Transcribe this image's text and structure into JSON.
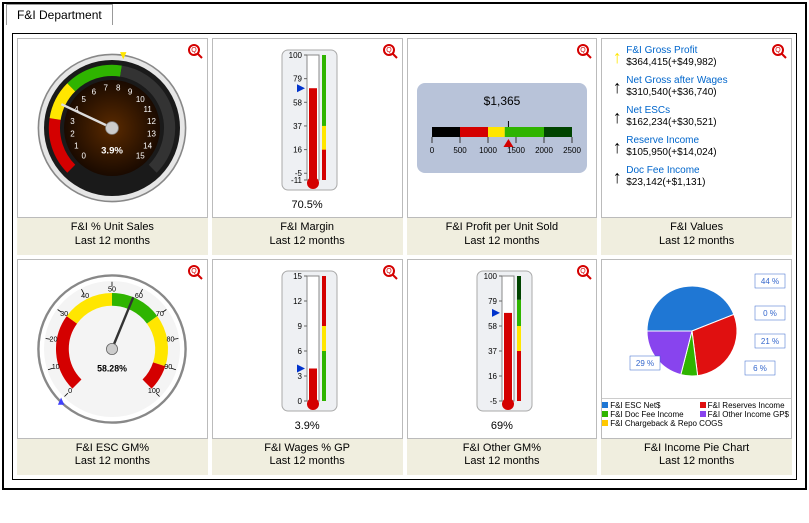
{
  "tab_title": "F&I Department",
  "cards": [
    {
      "title": "F&I % Unit Sales",
      "subtitle": "Last 12 months"
    },
    {
      "title": "F&I Margin",
      "subtitle": "Last 12 months"
    },
    {
      "title": "F&I Profit per Unit Sold",
      "subtitle": "Last 12 months"
    },
    {
      "title": "F&I Values",
      "subtitle": "Last 12 months"
    },
    {
      "title": "F&I ESC GM%",
      "subtitle": "Last 12 months"
    },
    {
      "title": "F&I Wages % GP",
      "subtitle": "Last 12 months"
    },
    {
      "title": "F&I Other GM%",
      "subtitle": "Last 12 months"
    },
    {
      "title": "F&I Income Pie Chart",
      "subtitle": "Last 12 months"
    }
  ],
  "gauge1": {
    "center_label": "3.9%",
    "ticks": [
      "0",
      "1",
      "2",
      "3",
      "4",
      "5",
      "6",
      "7",
      "8",
      "9",
      "10",
      "11",
      "12",
      "13",
      "14",
      "15"
    ],
    "pointer_value": 3.9,
    "max": 15,
    "zones": [
      {
        "from": 0,
        "to": 3,
        "color": "#d40000"
      },
      {
        "from": 3,
        "to": 5,
        "color": "#ffe600"
      },
      {
        "from": 5,
        "to": 8,
        "color": "#2fb400"
      },
      {
        "from": 8,
        "to": 15,
        "color": "#333333"
      }
    ],
    "face_outer": "#1a1a1a",
    "face_inner": "#3a1900"
  },
  "thermo_margin": {
    "value": 70.5,
    "label": "70.5%",
    "scale_min": -11,
    "scale_max": 100,
    "ticks": [
      -11,
      -5,
      16,
      37,
      58,
      79,
      100
    ],
    "bar_color": "#d40000",
    "scale_colors": [
      {
        "from": -11,
        "to": 16,
        "color": "#d40000"
      },
      {
        "from": 16,
        "to": 37,
        "color": "#ffe600"
      },
      {
        "from": 37,
        "to": 100,
        "color": "#2fb400"
      }
    ],
    "pointer_color": "#0033cc"
  },
  "hbar": {
    "value": 1365,
    "label": "$1,365",
    "min": 0,
    "max": 2500,
    "ticks": [
      0,
      500,
      1000,
      1500,
      2000,
      2500
    ],
    "zones": [
      {
        "from": 0,
        "to": 500,
        "color": "#000"
      },
      {
        "from": 500,
        "to": 1000,
        "color": "#d40000"
      },
      {
        "from": 1000,
        "to": 1300,
        "color": "#ffe600"
      },
      {
        "from": 1300,
        "to": 2000,
        "color": "#2fb400"
      },
      {
        "from": 2000,
        "to": 2500,
        "color": "#004400"
      }
    ],
    "bg": "#b8c3d9",
    "pointer_color": "#d40000"
  },
  "kpis": [
    {
      "label": "F&I Gross Profit",
      "value": "$364,415(+$49,982)",
      "arrow_color": "#ffe600"
    },
    {
      "label": "Net Gross after Wages",
      "value": "$310,540(+$36,740)",
      "arrow_color": "#000"
    },
    {
      "label": "Net ESCs",
      "value": "$162,234(+$30,521)",
      "arrow_color": "#000"
    },
    {
      "label": "Reserve Income",
      "value": "$105,950(+$14,024)",
      "arrow_color": "#000"
    },
    {
      "label": "Doc Fee Income",
      "value": "$23,142(+$1,131)",
      "arrow_color": "#000"
    }
  ],
  "gauge2": {
    "center_label": "58.28%",
    "ticks": [
      "0",
      "10",
      "20",
      "30",
      "40",
      "50",
      "60",
      "70",
      "80",
      "90",
      "100"
    ],
    "pointer_value": 58.28,
    "max": 100,
    "zones": [
      {
        "from": 0,
        "to": 30,
        "color": "#d40000"
      },
      {
        "from": 30,
        "to": 50,
        "color": "#ffe600"
      },
      {
        "from": 50,
        "to": 70,
        "color": "#2fb400"
      },
      {
        "from": 70,
        "to": 90,
        "color": "#ffe600"
      },
      {
        "from": 90,
        "to": 100,
        "color": "#d40000"
      }
    ],
    "pointer_blue": "#4040ff",
    "face": "#f4f4f4"
  },
  "thermo_wages": {
    "value": 3.9,
    "label": "3.9%",
    "scale_min": 0,
    "scale_max": 15,
    "ticks": [
      0,
      3,
      6,
      9,
      12,
      15
    ],
    "bar_color": "#d40000",
    "scale_colors": [
      {
        "from": 0,
        "to": 6,
        "color": "#2fb400"
      },
      {
        "from": 6,
        "to": 9,
        "color": "#ffe600"
      },
      {
        "from": 9,
        "to": 15,
        "color": "#d40000"
      }
    ],
    "pointer_color": "#0033cc"
  },
  "thermo_other": {
    "value": 69,
    "label": "69%",
    "scale_min": -5,
    "scale_max": 100,
    "ticks": [
      -5,
      16,
      37,
      58,
      79,
      100
    ],
    "bar_color": "#d40000",
    "scale_colors": [
      {
        "from": -5,
        "to": 37,
        "color": "#d40000"
      },
      {
        "from": 37,
        "to": 58,
        "color": "#ffe600"
      },
      {
        "from": 58,
        "to": 80,
        "color": "#2fb400"
      },
      {
        "from": 80,
        "to": 100,
        "color": "#004400"
      }
    ],
    "pointer_color": "#0033cc"
  },
  "pie": {
    "slices": [
      {
        "label": "F&I ESC Net$",
        "pct": 44,
        "color": "#1f77d4"
      },
      {
        "label": "F&I Reserves Income",
        "pct": 29,
        "color": "#e01010"
      },
      {
        "label": "F&I Doc Fee Income",
        "pct": 6,
        "color": "#2fb400"
      },
      {
        "label": "F&I Other Income GP$",
        "pct": 21,
        "color": "#8844ee"
      },
      {
        "label": "F&I Chargeback & Repo COGS",
        "pct": 0,
        "color": "#ffc800"
      }
    ],
    "callouts": [
      "44 %",
      "0 %",
      "21 %",
      "6 %",
      "29 %"
    ]
  }
}
